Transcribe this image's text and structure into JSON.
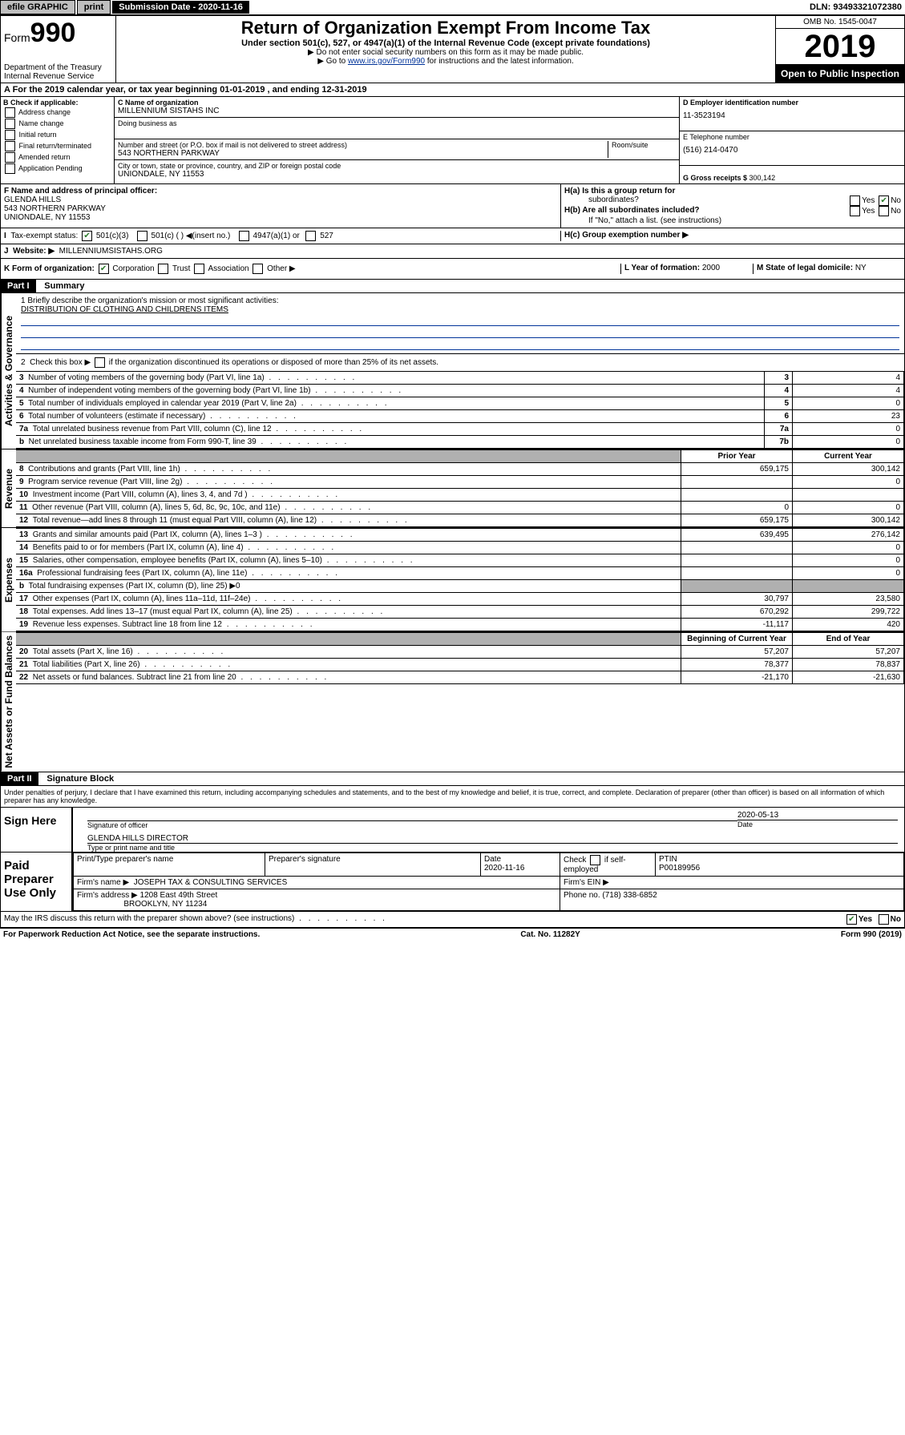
{
  "topbar": {
    "efile": "efile GRAPHIC",
    "print": "print",
    "submission_label": "Submission Date - 2020-11-16",
    "dln": "DLN: 93493321072380"
  },
  "header": {
    "form_prefix": "Form",
    "form_number": "990",
    "dept": "Department of the Treasury",
    "irs": "Internal Revenue Service",
    "title": "Return of Organization Exempt From Income Tax",
    "sub1": "Under section 501(c), 527, or 4947(a)(1) of the Internal Revenue Code (except private foundations)",
    "sub2": "▶ Do not enter social security numbers on this form as it may be made public.",
    "sub3_pre": "▶ Go to ",
    "sub3_link": "www.irs.gov/Form990",
    "sub3_post": " for instructions and the latest information.",
    "omb": "OMB No. 1545-0047",
    "year": "2019",
    "inspection": "Open to Public Inspection"
  },
  "rowA": {
    "text": "A For the 2019 calendar year, or tax year beginning 01-01-2019   , and ending 12-31-2019"
  },
  "colB": {
    "header": "B Check if applicable:",
    "addr": "Address change",
    "name": "Name change",
    "initial": "Initial return",
    "final": "Final return/terminated",
    "amended": "Amended return",
    "app": "Application Pending"
  },
  "colC": {
    "name_label": "C Name of organization",
    "name": "MILLENNIUM SISTAHS INC",
    "dba_label": "Doing business as",
    "dba": "",
    "addr_label": "Number and street (or P.O. box if mail is not delivered to street address)",
    "room_label": "Room/suite",
    "addr": "543 NORTHERN PARKWAY",
    "city_label": "City or town, state or province, country, and ZIP or foreign postal code",
    "city": "UNIONDALE, NY  11553"
  },
  "colD": {
    "ein_label": "D Employer identification number",
    "ein": "11-3523194",
    "phone_label": "E Telephone number",
    "phone": "(516) 214-0470",
    "gross_label": "G Gross receipts $ ",
    "gross": "300,142"
  },
  "rowF": {
    "label": "F  Name and address of principal officer:",
    "name": "GLENDA HILLS",
    "addr1": "543 NORTHERN PARKWAY",
    "addr2": "UNIONDALE, NY  11553"
  },
  "rowH": {
    "ha": "H(a)  Is this a group return for",
    "ha2": "subordinates?",
    "hb": "H(b)  Are all subordinates included?",
    "hb_note": "If \"No,\" attach a list. (see instructions)",
    "hc": "H(c)  Group exemption number ▶"
  },
  "ynLabels": {
    "yes": "Yes",
    "no": "No"
  },
  "rowI": {
    "label": "Tax-exempt status:",
    "c3": "501(c)(3)",
    "c": "501(c) (   ) ◀(insert no.)",
    "a1": "4947(a)(1) or",
    "s527": "527"
  },
  "rowJ": {
    "label": "Website: ▶",
    "val": "MILLENNIUMSISTAHS.ORG"
  },
  "rowK": {
    "label": "K Form of organization:",
    "corp": "Corporation",
    "trust": "Trust",
    "assoc": "Association",
    "other": "Other ▶",
    "l_label": "L Year of formation: ",
    "l_val": "2000",
    "m_label": "M State of legal domicile: ",
    "m_val": "NY"
  },
  "partI": {
    "header": "Part I",
    "title": "Summary",
    "q1": "1  Briefly describe the organization's mission or most significant activities:",
    "mission": "DISTRIBUTION OF CLOTHING AND CHILDRENS ITEMS",
    "q2": "2   Check this box ▶       if the organization discontinued its operations or disposed of more than 25% of its net assets.",
    "vert_gov": "Activities & Governance",
    "vert_rev": "Revenue",
    "vert_exp": "Expenses",
    "vert_net": "Net Assets or Fund Balances",
    "rows_gov": [
      {
        "n": "3",
        "t": "Number of voting members of the governing body (Part VI, line 1a)",
        "box": "3",
        "v": "4"
      },
      {
        "n": "4",
        "t": "Number of independent voting members of the governing body (Part VI, line 1b)",
        "box": "4",
        "v": "4"
      },
      {
        "n": "5",
        "t": "Total number of individuals employed in calendar year 2019 (Part V, line 2a)",
        "box": "5",
        "v": "0"
      },
      {
        "n": "6",
        "t": "Total number of volunteers (estimate if necessary)",
        "box": "6",
        "v": "23"
      },
      {
        "n": "7a",
        "t": "Total unrelated business revenue from Part VIII, column (C), line 12",
        "box": "7a",
        "v": "0"
      },
      {
        "n": "b",
        "t": "Net unrelated business taxable income from Form 990-T, line 39",
        "box": "7b",
        "v": "0"
      }
    ],
    "hdr_prior": "Prior Year",
    "hdr_current": "Current Year",
    "rows_rev": [
      {
        "n": "8",
        "t": "Contributions and grants (Part VIII, line 1h)",
        "p": "659,175",
        "c": "300,142"
      },
      {
        "n": "9",
        "t": "Program service revenue (Part VIII, line 2g)",
        "p": "",
        "c": "0"
      },
      {
        "n": "10",
        "t": "Investment income (Part VIII, column (A), lines 3, 4, and 7d )",
        "p": "",
        "c": ""
      },
      {
        "n": "11",
        "t": "Other revenue (Part VIII, column (A), lines 5, 6d, 8c, 9c, 10c, and 11e)",
        "p": "0",
        "c": "0"
      },
      {
        "n": "12",
        "t": "Total revenue—add lines 8 through 11 (must equal Part VIII, column (A), line 12)",
        "p": "659,175",
        "c": "300,142"
      }
    ],
    "rows_exp": [
      {
        "n": "13",
        "t": "Grants and similar amounts paid (Part IX, column (A), lines 1–3 )",
        "p": "639,495",
        "c": "276,142"
      },
      {
        "n": "14",
        "t": "Benefits paid to or for members (Part IX, column (A), line 4)",
        "p": "",
        "c": "0"
      },
      {
        "n": "15",
        "t": "Salaries, other compensation, employee benefits (Part IX, column (A), lines 5–10)",
        "p": "",
        "c": "0"
      },
      {
        "n": "16a",
        "t": "Professional fundraising fees (Part IX, column (A), line 11e)",
        "p": "",
        "c": "0"
      },
      {
        "n": "b",
        "t": "Total fundraising expenses (Part IX, column (D), line 25) ▶0",
        "p": "shaded",
        "c": "shaded"
      },
      {
        "n": "17",
        "t": "Other expenses (Part IX, column (A), lines 11a–11d, 11f–24e)",
        "p": "30,797",
        "c": "23,580"
      },
      {
        "n": "18",
        "t": "Total expenses. Add lines 13–17 (must equal Part IX, column (A), line 25)",
        "p": "670,292",
        "c": "299,722"
      },
      {
        "n": "19",
        "t": "Revenue less expenses. Subtract line 18 from line 12",
        "p": "-11,117",
        "c": "420"
      }
    ],
    "hdr_begin": "Beginning of Current Year",
    "hdr_end": "End of Year",
    "rows_net": [
      {
        "n": "20",
        "t": "Total assets (Part X, line 16)",
        "p": "57,207",
        "c": "57,207"
      },
      {
        "n": "21",
        "t": "Total liabilities (Part X, line 26)",
        "p": "78,377",
        "c": "78,837"
      },
      {
        "n": "22",
        "t": "Net assets or fund balances. Subtract line 21 from line 20",
        "p": "-21,170",
        "c": "-21,630"
      }
    ]
  },
  "partII": {
    "header": "Part II",
    "title": "Signature Block",
    "perjury": "Under penalties of perjury, I declare that I have examined this return, including accompanying schedules and statements, and to the best of my knowledge and belief, it is true, correct, and complete. Declaration of preparer (other than officer) is based on all information of which preparer has any knowledge.",
    "sign_here": "Sign Here",
    "sig_officer": "Signature of officer",
    "sig_date": "2020-05-13",
    "date_label": "Date",
    "name_title": "GLENDA HILLS  DIRECTOR",
    "name_title_label": "Type or print name and title",
    "paid": "Paid Preparer Use Only",
    "prep_name_label": "Print/Type preparer's name",
    "prep_sig_label": "Preparer's signature",
    "prep_date_label": "Date",
    "prep_date": "2020-11-16",
    "check_self": "Check        if self-employed",
    "ptin_label": "PTIN",
    "ptin": "P00189956",
    "firm_name_label": "Firm's name    ▶",
    "firm_name": "JOSEPH TAX & CONSULTING SERVICES",
    "firm_ein_label": "Firm's EIN ▶",
    "firm_addr_label": "Firm's address ▶",
    "firm_addr1": "1208 East 49th Street",
    "firm_addr2": "BROOKLYN, NY  11234",
    "phone_label": "Phone no. ",
    "phone": "(718) 338-6852",
    "discuss": "May the IRS discuss this return with the preparer shown above? (see instructions)"
  },
  "footer": {
    "pra": "For Paperwork Reduction Act Notice, see the separate instructions.",
    "cat": "Cat. No. 11282Y",
    "form": "Form 990 (2019)"
  }
}
